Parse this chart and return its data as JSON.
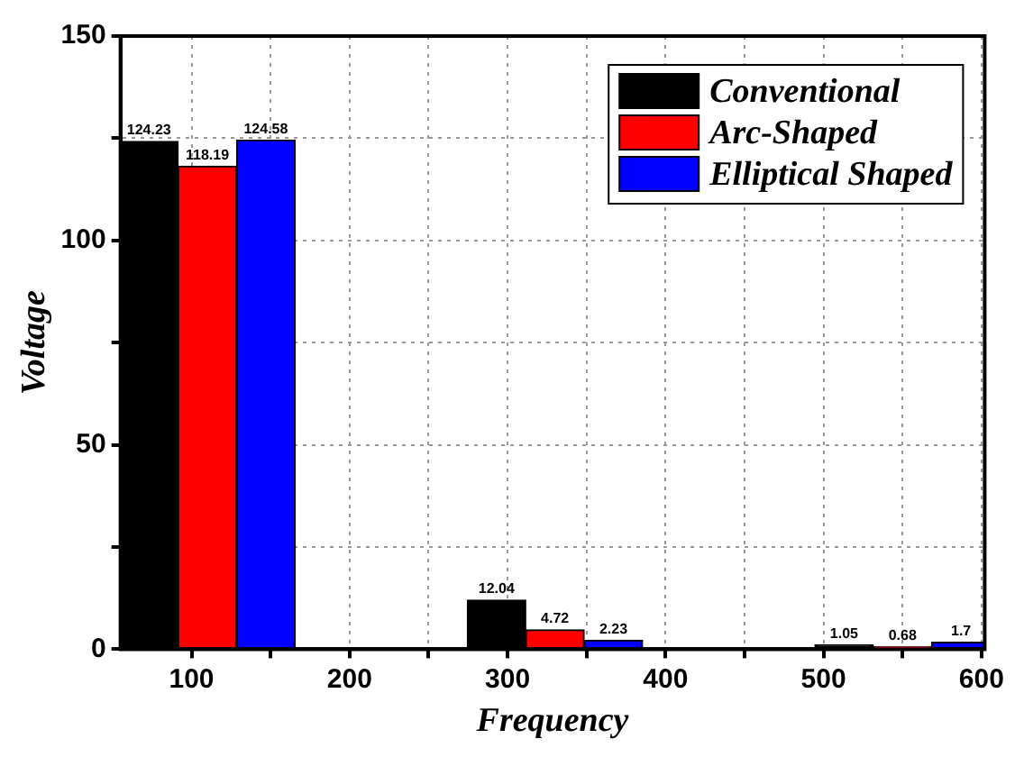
{
  "chart_data": {
    "type": "bar",
    "xlabel": "Frequency",
    "ylabel": "Voltage",
    "series": [
      {
        "name": "Conventional",
        "color": "#000000",
        "x": [
          73,
          293,
          513
        ],
        "values": [
          124.23,
          12.04,
          1.05
        ]
      },
      {
        "name": "Arc-Shaped",
        "color": "#ff0000",
        "x": [
          110,
          330,
          550
        ],
        "values": [
          118.19,
          4.72,
          0.68
        ]
      },
      {
        "name": "Elliptical Shaped",
        "color": "#0000ff",
        "x": [
          147,
          367,
          587
        ],
        "values": [
          124.58,
          2.23,
          1.7
        ]
      }
    ],
    "xlim": [
      55,
      602
    ],
    "xticks": [
      100,
      {
        "value": 150,
        "label": null
      },
      200,
      {
        "value": 250,
        "label": null
      },
      300,
      {
        "value": 350,
        "label": null
      },
      400,
      {
        "value": 450,
        "label": null
      },
      500,
      {
        "value": 550,
        "label": null
      },
      600
    ],
    "ylim": [
      0,
      150
    ],
    "yticks": [
      0,
      {
        "value": 25,
        "label": null
      },
      50,
      {
        "value": 75,
        "label": null
      },
      100,
      {
        "value": 125,
        "label": null
      },
      150
    ],
    "grid": true,
    "legend": "top right",
    "data_labels": true
  }
}
